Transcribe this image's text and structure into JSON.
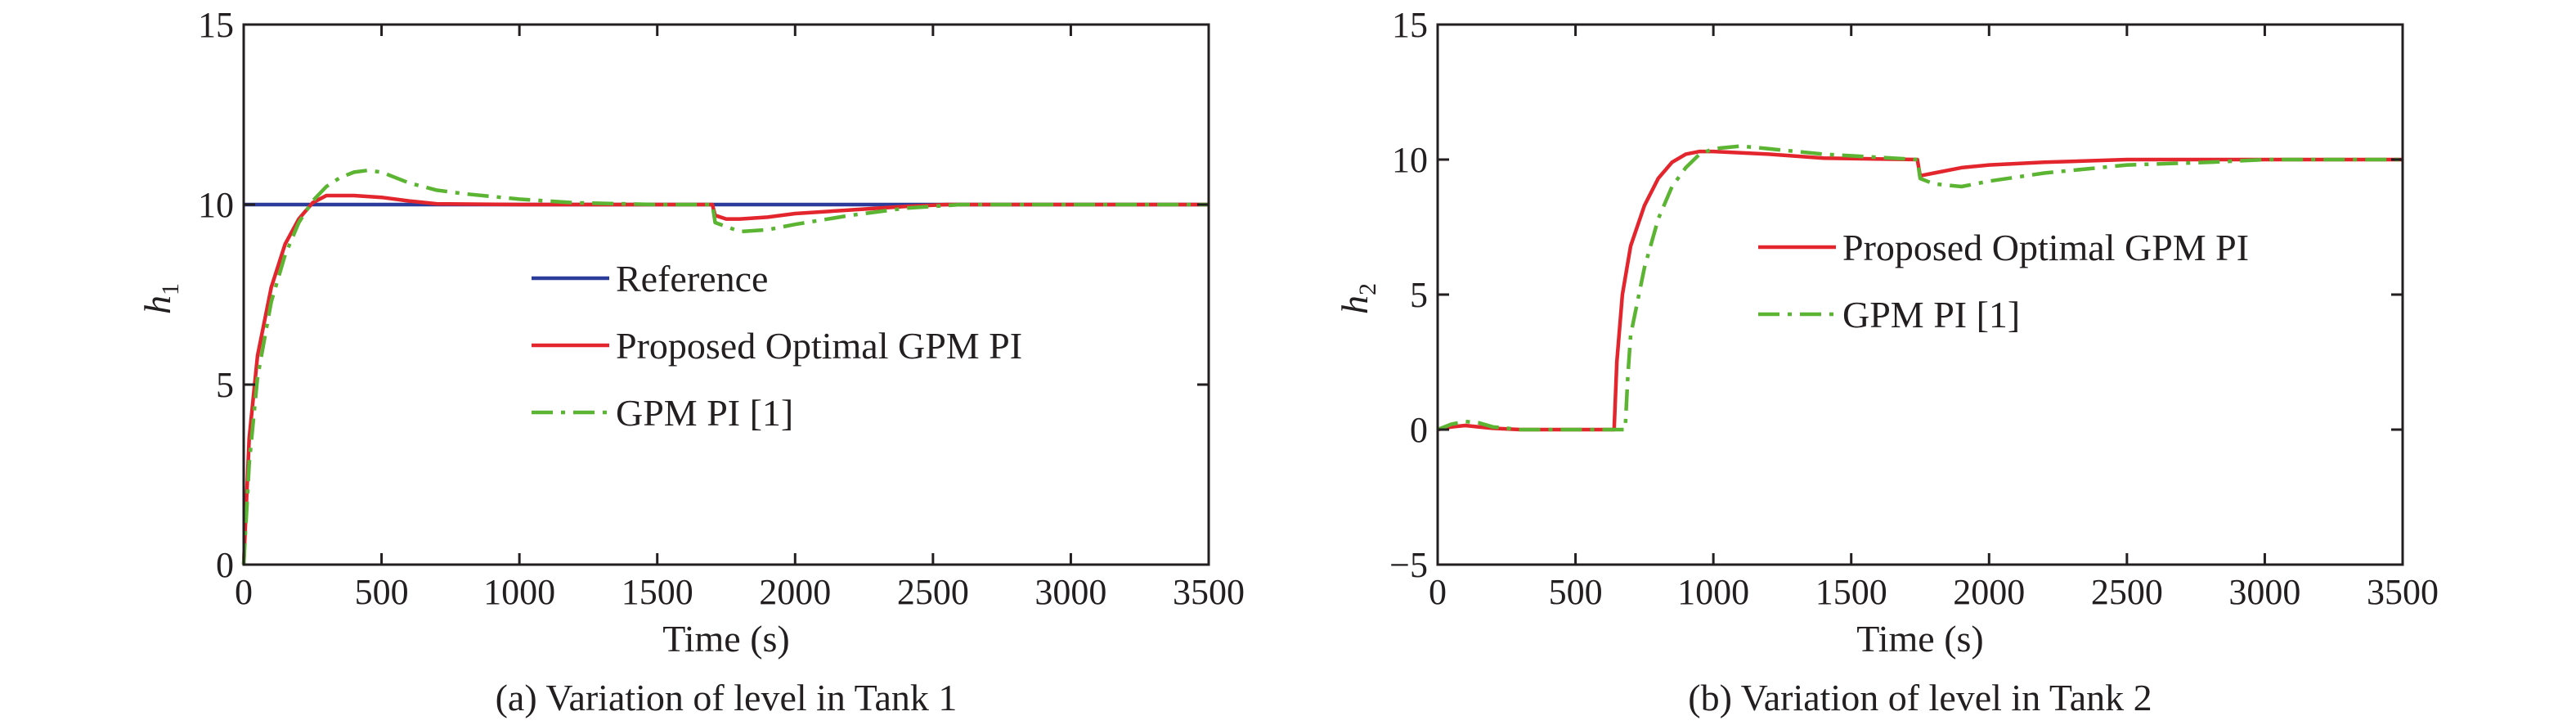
{
  "chart_data": [
    {
      "type": "line",
      "caption": "(a) Variation of level in Tank 1",
      "xlabel": "Time (s)",
      "ylabel_main": "h",
      "ylabel_sub": "1",
      "xlim": [
        0,
        3500
      ],
      "ylim": [
        0,
        15
      ],
      "xticks": [
        0,
        500,
        1000,
        1500,
        2000,
        2500,
        3000,
        3500
      ],
      "yticks": [
        0,
        5,
        10,
        15
      ],
      "x_tick_labels": [
        "0",
        "500",
        "1000",
        "1500",
        "2000",
        "2500",
        "3000",
        "3500"
      ],
      "y_tick_labels": [
        "0",
        "5",
        "10",
        "15"
      ],
      "legend_position": "center",
      "series": [
        {
          "name": "Reference",
          "color": "#2b3c9b",
          "style": "solid",
          "x": [
            0,
            3500
          ],
          "y": [
            10,
            10
          ]
        },
        {
          "name": "Proposed Optimal GPM PI",
          "color": "#e3262d",
          "style": "solid",
          "x": [
            0,
            20,
            50,
            100,
            150,
            200,
            250,
            300,
            400,
            500,
            600,
            700,
            1000,
            1500,
            1700,
            1710,
            1750,
            1800,
            1900,
            2000,
            2200,
            2400,
            2550,
            3000,
            3500
          ],
          "y": [
            0,
            3.5,
            5.8,
            7.7,
            8.9,
            9.6,
            10.05,
            10.25,
            10.25,
            10.2,
            10.1,
            10.02,
            10.0,
            10.0,
            10.0,
            9.7,
            9.6,
            9.6,
            9.65,
            9.75,
            9.85,
            9.95,
            10.0,
            10.0,
            10.0
          ]
        },
        {
          "name": "GPM PI [1]",
          "color": "#5cb532",
          "style": "dashdot",
          "x": [
            0,
            20,
            50,
            100,
            150,
            200,
            250,
            300,
            350,
            400,
            450,
            500,
            600,
            700,
            800,
            1000,
            1200,
            1500,
            1700,
            1710,
            1800,
            1900,
            2000,
            2200,
            2400,
            2600,
            3000,
            3500
          ],
          "y": [
            0,
            2.8,
            5.2,
            7.3,
            8.6,
            9.5,
            10.1,
            10.5,
            10.75,
            10.9,
            10.95,
            10.9,
            10.6,
            10.4,
            10.3,
            10.15,
            10.05,
            10.0,
            10.0,
            9.5,
            9.25,
            9.3,
            9.45,
            9.7,
            9.9,
            10.0,
            10.0,
            10.0
          ]
        }
      ]
    },
    {
      "type": "line",
      "caption": "(b) Variation of level in Tank 2",
      "xlabel": "Time (s)",
      "ylabel_main": "h",
      "ylabel_sub": "2",
      "xlim": [
        0,
        3500
      ],
      "ylim": [
        -5,
        15
      ],
      "xticks": [
        0,
        500,
        1000,
        1500,
        2000,
        2500,
        3000,
        3500
      ],
      "yticks": [
        -5,
        0,
        5,
        10,
        15
      ],
      "x_tick_labels": [
        "0",
        "500",
        "1000",
        "1500",
        "2000",
        "2500",
        "3000",
        "3500"
      ],
      "y_tick_labels": [
        "−5",
        "0",
        "5",
        "10",
        "15"
      ],
      "legend_position": "center-right",
      "series": [
        {
          "name": "Proposed Optimal GPM PI",
          "color": "#e3262d",
          "style": "solid",
          "x": [
            0,
            50,
            100,
            150,
            200,
            300,
            500,
            640,
            650,
            670,
            700,
            750,
            800,
            850,
            900,
            950,
            1000,
            1200,
            1400,
            1740,
            1750,
            1800,
            1900,
            2000,
            2200,
            2500,
            3000,
            3500
          ],
          "y": [
            0,
            0.1,
            0.15,
            0.1,
            0.05,
            0,
            0,
            0,
            2.5,
            5.0,
            6.8,
            8.3,
            9.3,
            9.9,
            10.2,
            10.3,
            10.3,
            10.2,
            10.05,
            10.0,
            9.4,
            9.5,
            9.7,
            9.8,
            9.9,
            10.0,
            10.0,
            10.0
          ]
        },
        {
          "name": "GPM PI [1]",
          "color": "#5cb532",
          "style": "dashdot",
          "x": [
            0,
            50,
            100,
            150,
            200,
            300,
            500,
            680,
            690,
            700,
            750,
            800,
            850,
            900,
            950,
            1000,
            1100,
            1200,
            1400,
            1740,
            1750,
            1800,
            1900,
            2000,
            2200,
            2500,
            2800,
            3000,
            3500
          ],
          "y": [
            0,
            0.2,
            0.3,
            0.25,
            0.1,
            0,
            0,
            0,
            2.0,
            3.5,
            6.0,
            7.8,
            9.0,
            9.7,
            10.2,
            10.4,
            10.5,
            10.4,
            10.2,
            10.0,
            9.3,
            9.1,
            9.0,
            9.2,
            9.5,
            9.8,
            9.9,
            10.0,
            10.0
          ]
        }
      ]
    }
  ]
}
